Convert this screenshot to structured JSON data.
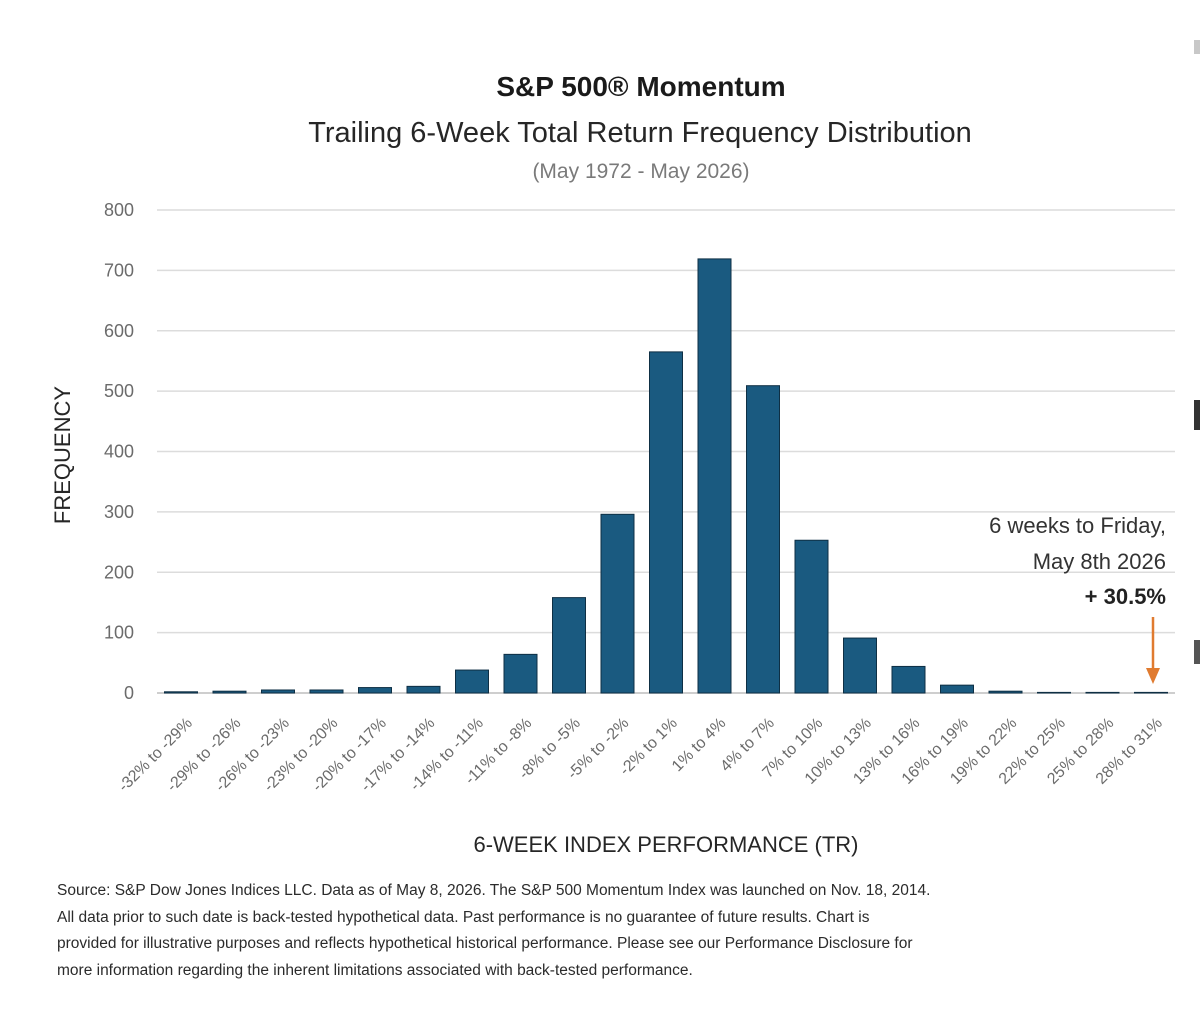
{
  "chart_data": {
    "type": "bar",
    "title": "S&P 500® Momentum",
    "subtitle": "Trailing 6-Week Total Return Frequency Distribution",
    "period": "(May 1972 - May 2026)",
    "xlabel": "6-WEEK INDEX PERFORMANCE (TR)",
    "ylabel": "FREQUENCY",
    "ylim": [
      0,
      800
    ],
    "yticks": [
      0,
      100,
      200,
      300,
      400,
      500,
      600,
      700,
      800
    ],
    "grid": true,
    "categories": [
      "-32% to -29%",
      "-29% to -26%",
      "-26% to -23%",
      "-23% to -20%",
      "-20% to -17%",
      "-17% to -14%",
      "-14% to -11%",
      "-11% to -8%",
      "-8% to -5%",
      "-5% to -2%",
      "-2% to 1%",
      "1% to 4%",
      "4% to 7%",
      "7% to 10%",
      "10% to 13%",
      "13% to 16%",
      "16% to 19%",
      "19% to 22%",
      "22% to 25%",
      "25% to 28%",
      "28% to 31%"
    ],
    "values": [
      2,
      3,
      5,
      5,
      9,
      11,
      38,
      64,
      158,
      296,
      565,
      719,
      509,
      253,
      91,
      44,
      13,
      3,
      1,
      1,
      1
    ],
    "bar_color": "#1a5a80",
    "annotation": {
      "line1": "6 weeks to Friday,",
      "line2": "May 8th 2026",
      "value": "+ 30.5%",
      "category_index": 20,
      "arrow_color": "#e07b30"
    }
  },
  "footnote": {
    "lines": [
      "Source: S&P Dow Jones Indices LLC.  Data as of May 8, 2026. The S&P 500 Momentum Index was launched on Nov. 18, 2014.",
      "All data prior to such date is back-tested hypothetical data.  Past performance is no guarantee of future results.  Chart is",
      "provided for illustrative purposes and reflects hypothetical historical performance.  Please see our Performance Disclosure  for",
      "more information regarding the inherent limitations associated with back-tested performance."
    ]
  }
}
